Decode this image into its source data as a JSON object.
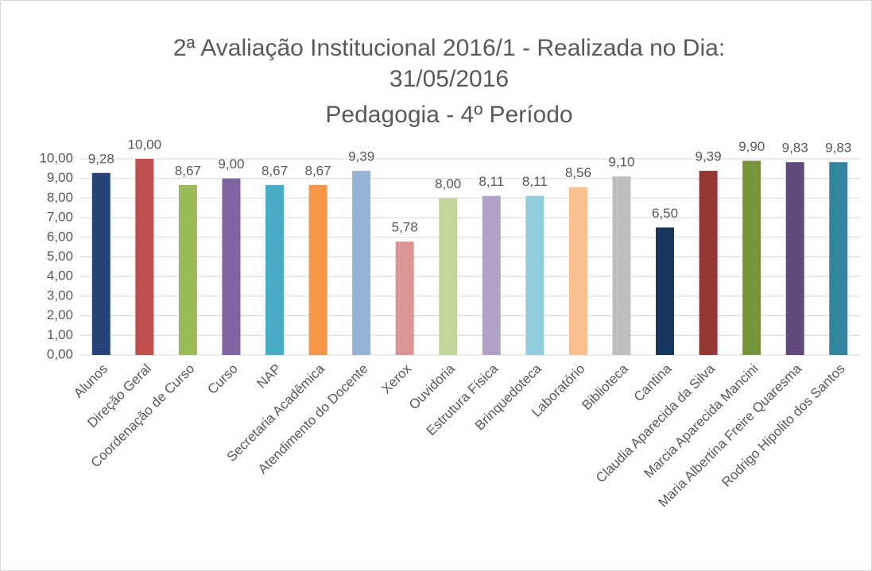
{
  "chart_data": {
    "type": "bar",
    "title": [
      "2ª Avaliação Institucional 2016/1 - Realizada no Dia:",
      "31/05/2016",
      "Pedagogia - 4º Período"
    ],
    "categories": [
      "Alunos",
      "Direção Geral",
      "Coordenação de Curso",
      "Curso",
      "NAP",
      "Secretaria Acadêmica",
      "Atendimento do Docente",
      "Xerox",
      "Ouvidoria",
      "Estrutura Física",
      "Brinquedoteca",
      "Laboratório",
      "Biblioteca",
      "Cantina",
      "Claudia Aparecida da Silva",
      "Marcia Aparecida Mancini",
      "Maria Albertina Freire Quaresma",
      "Rodrigo Hipolito dos Santos"
    ],
    "values": [
      9.28,
      10,
      8.67,
      9,
      8.67,
      8.67,
      9.39,
      5.78,
      8,
      8.11,
      8.11,
      8.56,
      9.1,
      6.5,
      9.39,
      9.9,
      9.83,
      9.83
    ],
    "value_labels": [
      "9,28",
      "10,00",
      "8,67",
      "9,00",
      "8,67",
      "8,67",
      "9,39",
      "5,78",
      "8,00",
      "8,11",
      "8,11",
      "8,56",
      "9,10",
      "6,50",
      "9,39",
      "9,90",
      "9,83",
      "9,83"
    ],
    "colors": [
      "#264478",
      "#c0504d",
      "#9bbb59",
      "#8064a2",
      "#4bacc6",
      "#f79646",
      "#95b3d7",
      "#d99694",
      "#c3d69b",
      "#b2a2c7",
      "#93cddd",
      "#fac090",
      "#bfbfbf",
      "#17375e",
      "#953735",
      "#77933c",
      "#604a7b",
      "#31859c"
    ],
    "ylim": [
      0,
      10
    ],
    "yticks": [
      {
        "value": 0,
        "label": "0,00"
      },
      {
        "value": 1,
        "label": "1,00"
      },
      {
        "value": 2,
        "label": "2,00"
      },
      {
        "value": 3,
        "label": "3,00"
      },
      {
        "value": 4,
        "label": "4,00"
      },
      {
        "value": 5,
        "label": "5,00"
      },
      {
        "value": 6,
        "label": "6,00"
      },
      {
        "value": 7,
        "label": "7,00"
      },
      {
        "value": 8,
        "label": "8,00"
      },
      {
        "value": 9,
        "label": "9,00"
      },
      {
        "value": 10,
        "label": "10,00"
      }
    ],
    "grid": true
  }
}
